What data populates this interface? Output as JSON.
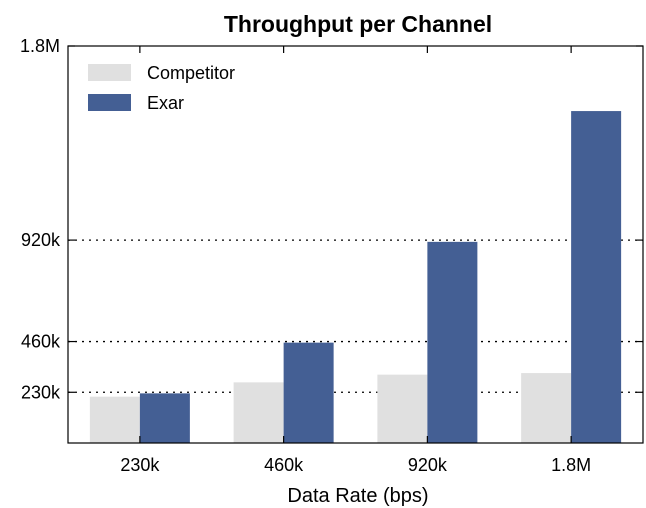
{
  "chart_data": {
    "type": "bar",
    "title": "Throughput per Channel",
    "xlabel": "Data Rate (bps)",
    "ylabel": "",
    "categories": [
      "230k",
      "460k",
      "920k",
      "1.8M"
    ],
    "series": [
      {
        "name": "Competitor",
        "values": [
          210000,
          275000,
          310000,
          317000
        ],
        "color": "#e0e0e0"
      },
      {
        "name": "Exar",
        "values": [
          225000,
          455000,
          912000,
          1505000
        ],
        "color": "#445f94"
      }
    ],
    "ylim": [
      0,
      1800000
    ],
    "yticks": [
      {
        "value": 230000,
        "label": "230k"
      },
      {
        "value": 460000,
        "label": "460k"
      },
      {
        "value": 920000,
        "label": "920k"
      },
      {
        "value": 1800000,
        "label": "1.8M"
      }
    ],
    "grid": true,
    "legend_position": "top-left"
  }
}
